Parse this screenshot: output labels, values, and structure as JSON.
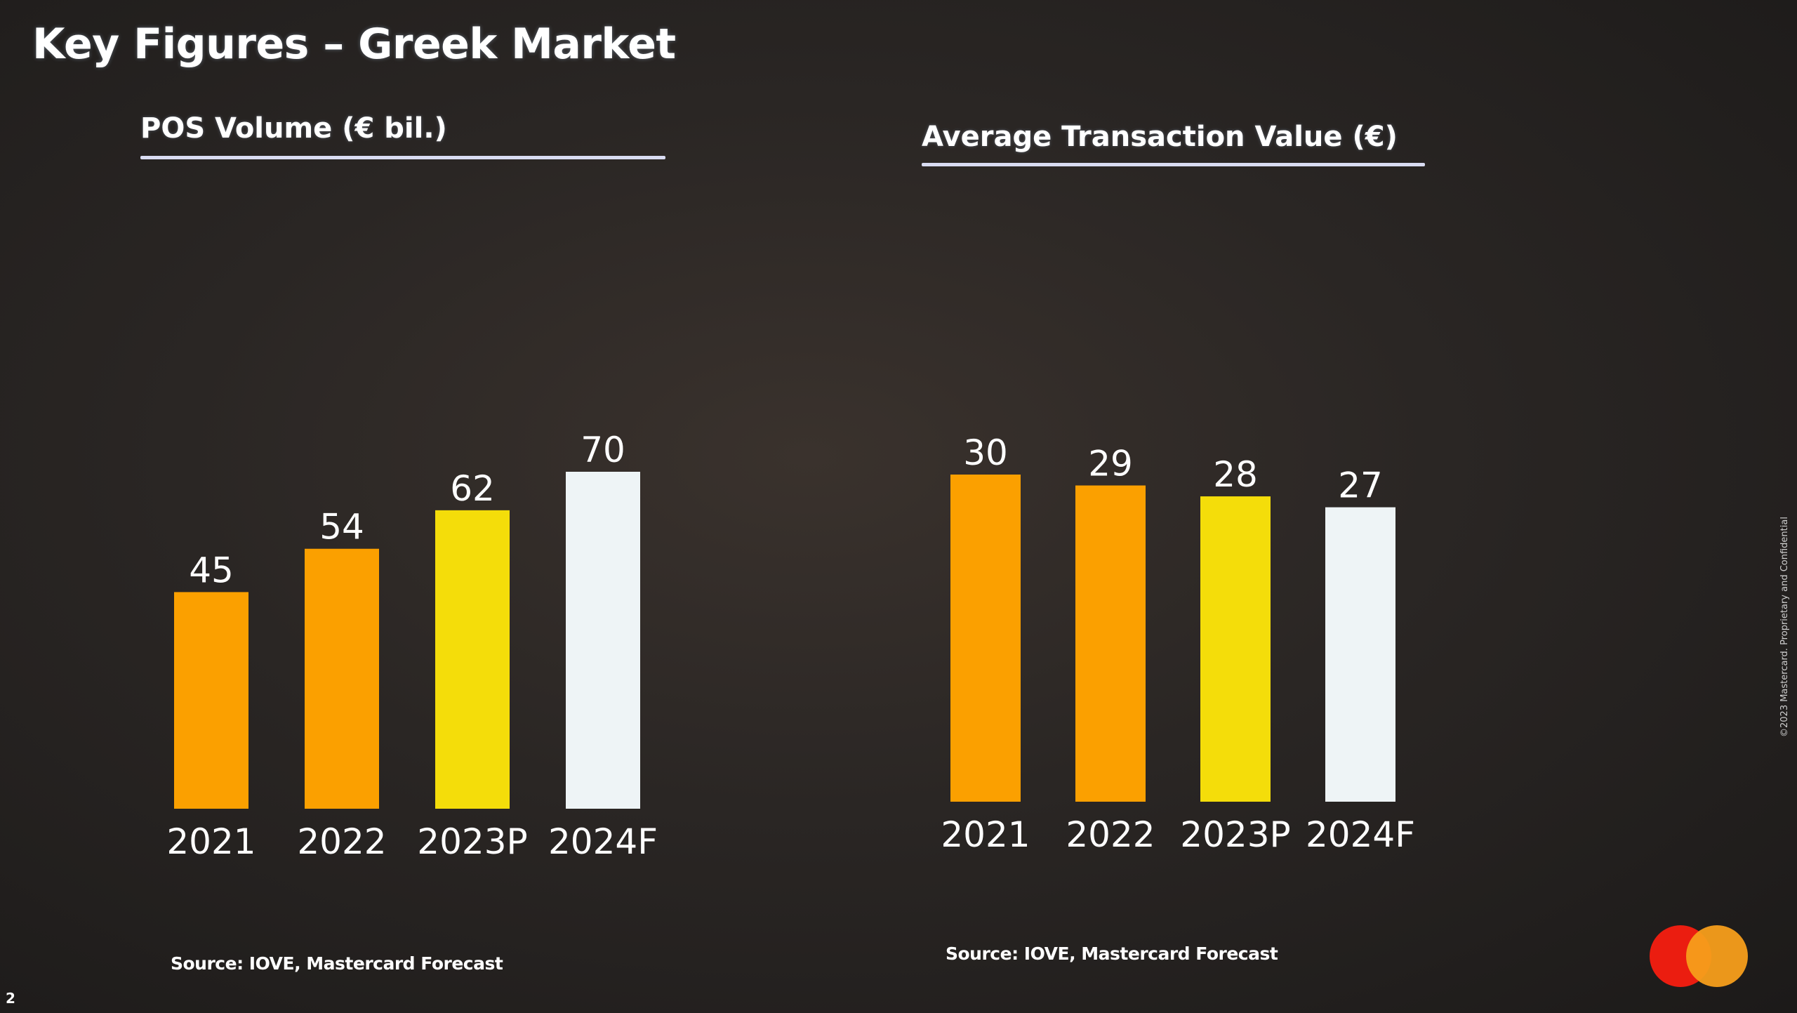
{
  "slide": {
    "title": "Key Figures – Greek Market",
    "page_number": "2",
    "copyright": "©2023 Mastercard. Proprietary and Confidential"
  },
  "colors": {
    "orange": "#fba000",
    "yellow": "#f4dd0a",
    "white": "#eef4f6",
    "underline": "#d9dcf2"
  },
  "chart_data": [
    {
      "type": "bar",
      "title": "POS Volume (€ bil.)",
      "categories": [
        "2021",
        "2022",
        "2023P",
        "2024F"
      ],
      "values": [
        45,
        54,
        62,
        70
      ],
      "value_labels": [
        "45",
        "54",
        "62",
        "70"
      ],
      "bar_colors": [
        "#fba000",
        "#fba000",
        "#f4dd0a",
        "#eef4f6"
      ],
      "ylim": [
        0,
        70
      ],
      "grid": false,
      "source": "Source: IOVE, Mastercard Forecast"
    },
    {
      "type": "bar",
      "title": "Average Transaction Value (€)",
      "categories": [
        "2021",
        "2022",
        "2023P",
        "2024F"
      ],
      "values": [
        30,
        29,
        28,
        27
      ],
      "value_labels": [
        "30",
        "29",
        "28",
        "27"
      ],
      "bar_colors": [
        "#fba000",
        "#fba000",
        "#f4dd0a",
        "#eef4f6"
      ],
      "ylim": [
        0,
        30
      ],
      "grid": false,
      "source": "Source: IOVE, Mastercard Forecast"
    }
  ]
}
